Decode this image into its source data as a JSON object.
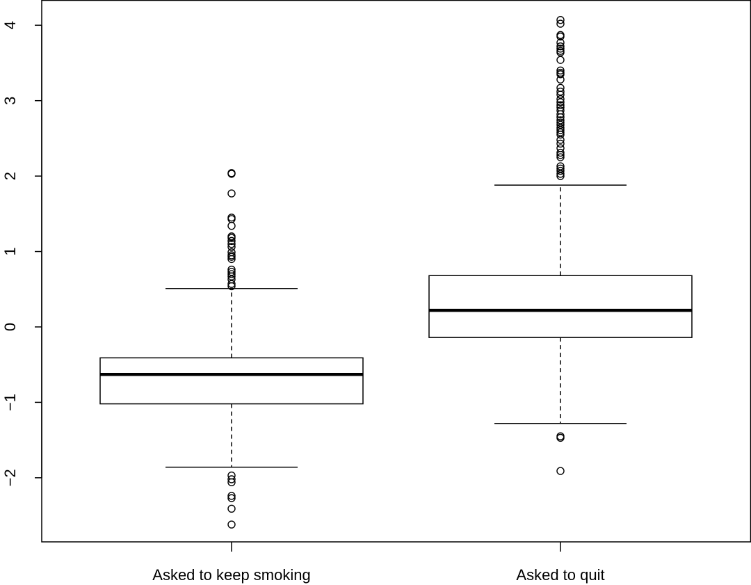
{
  "chart_data": {
    "type": "box",
    "title": "",
    "xlabel": "",
    "ylabel": "",
    "ylim": [
      -2.85,
      4.33
    ],
    "yticks": [
      -2,
      -1,
      0,
      1,
      2,
      3,
      4
    ],
    "ytick_labels": [
      "−2",
      "−1",
      "0",
      "1",
      "2",
      "3",
      "4"
    ],
    "categories": [
      "Asked to keep smoking",
      "Asked to quit"
    ],
    "boxes": [
      {
        "category": "Asked to keep smoking",
        "whisker_low": -1.86,
        "q1": -1.02,
        "median": -0.63,
        "q3": -0.41,
        "whisker_high": 0.51,
        "outliers": [
          2.04,
          2.03,
          1.77,
          1.45,
          1.43,
          1.34,
          1.2,
          1.18,
          1.14,
          1.1,
          1.06,
          0.99,
          0.95,
          0.93,
          0.9,
          0.76,
          0.73,
          0.7,
          0.67,
          0.63,
          0.57,
          0.54,
          -1.97,
          -2.02,
          -2.06,
          -2.24,
          -2.27,
          -2.41,
          -2.62
        ]
      },
      {
        "category": "Asked to quit",
        "whisker_low": -1.28,
        "q1": -0.14,
        "median": 0.22,
        "q3": 0.68,
        "whisker_high": 1.88,
        "outliers": [
          4.07,
          4.02,
          3.87,
          3.85,
          3.77,
          3.72,
          3.69,
          3.66,
          3.64,
          3.54,
          3.4,
          3.37,
          3.35,
          3.28,
          3.17,
          3.12,
          3.08,
          3.02,
          2.98,
          2.94,
          2.91,
          2.87,
          2.82,
          2.78,
          2.74,
          2.71,
          2.68,
          2.64,
          2.61,
          2.58,
          2.55,
          2.48,
          2.43,
          2.37,
          2.31,
          2.28,
          2.25,
          2.13,
          2.1,
          2.07,
          2.03,
          2.0,
          -1.45,
          -1.47,
          -1.91
        ]
      }
    ],
    "grid": false,
    "legend": "none"
  }
}
